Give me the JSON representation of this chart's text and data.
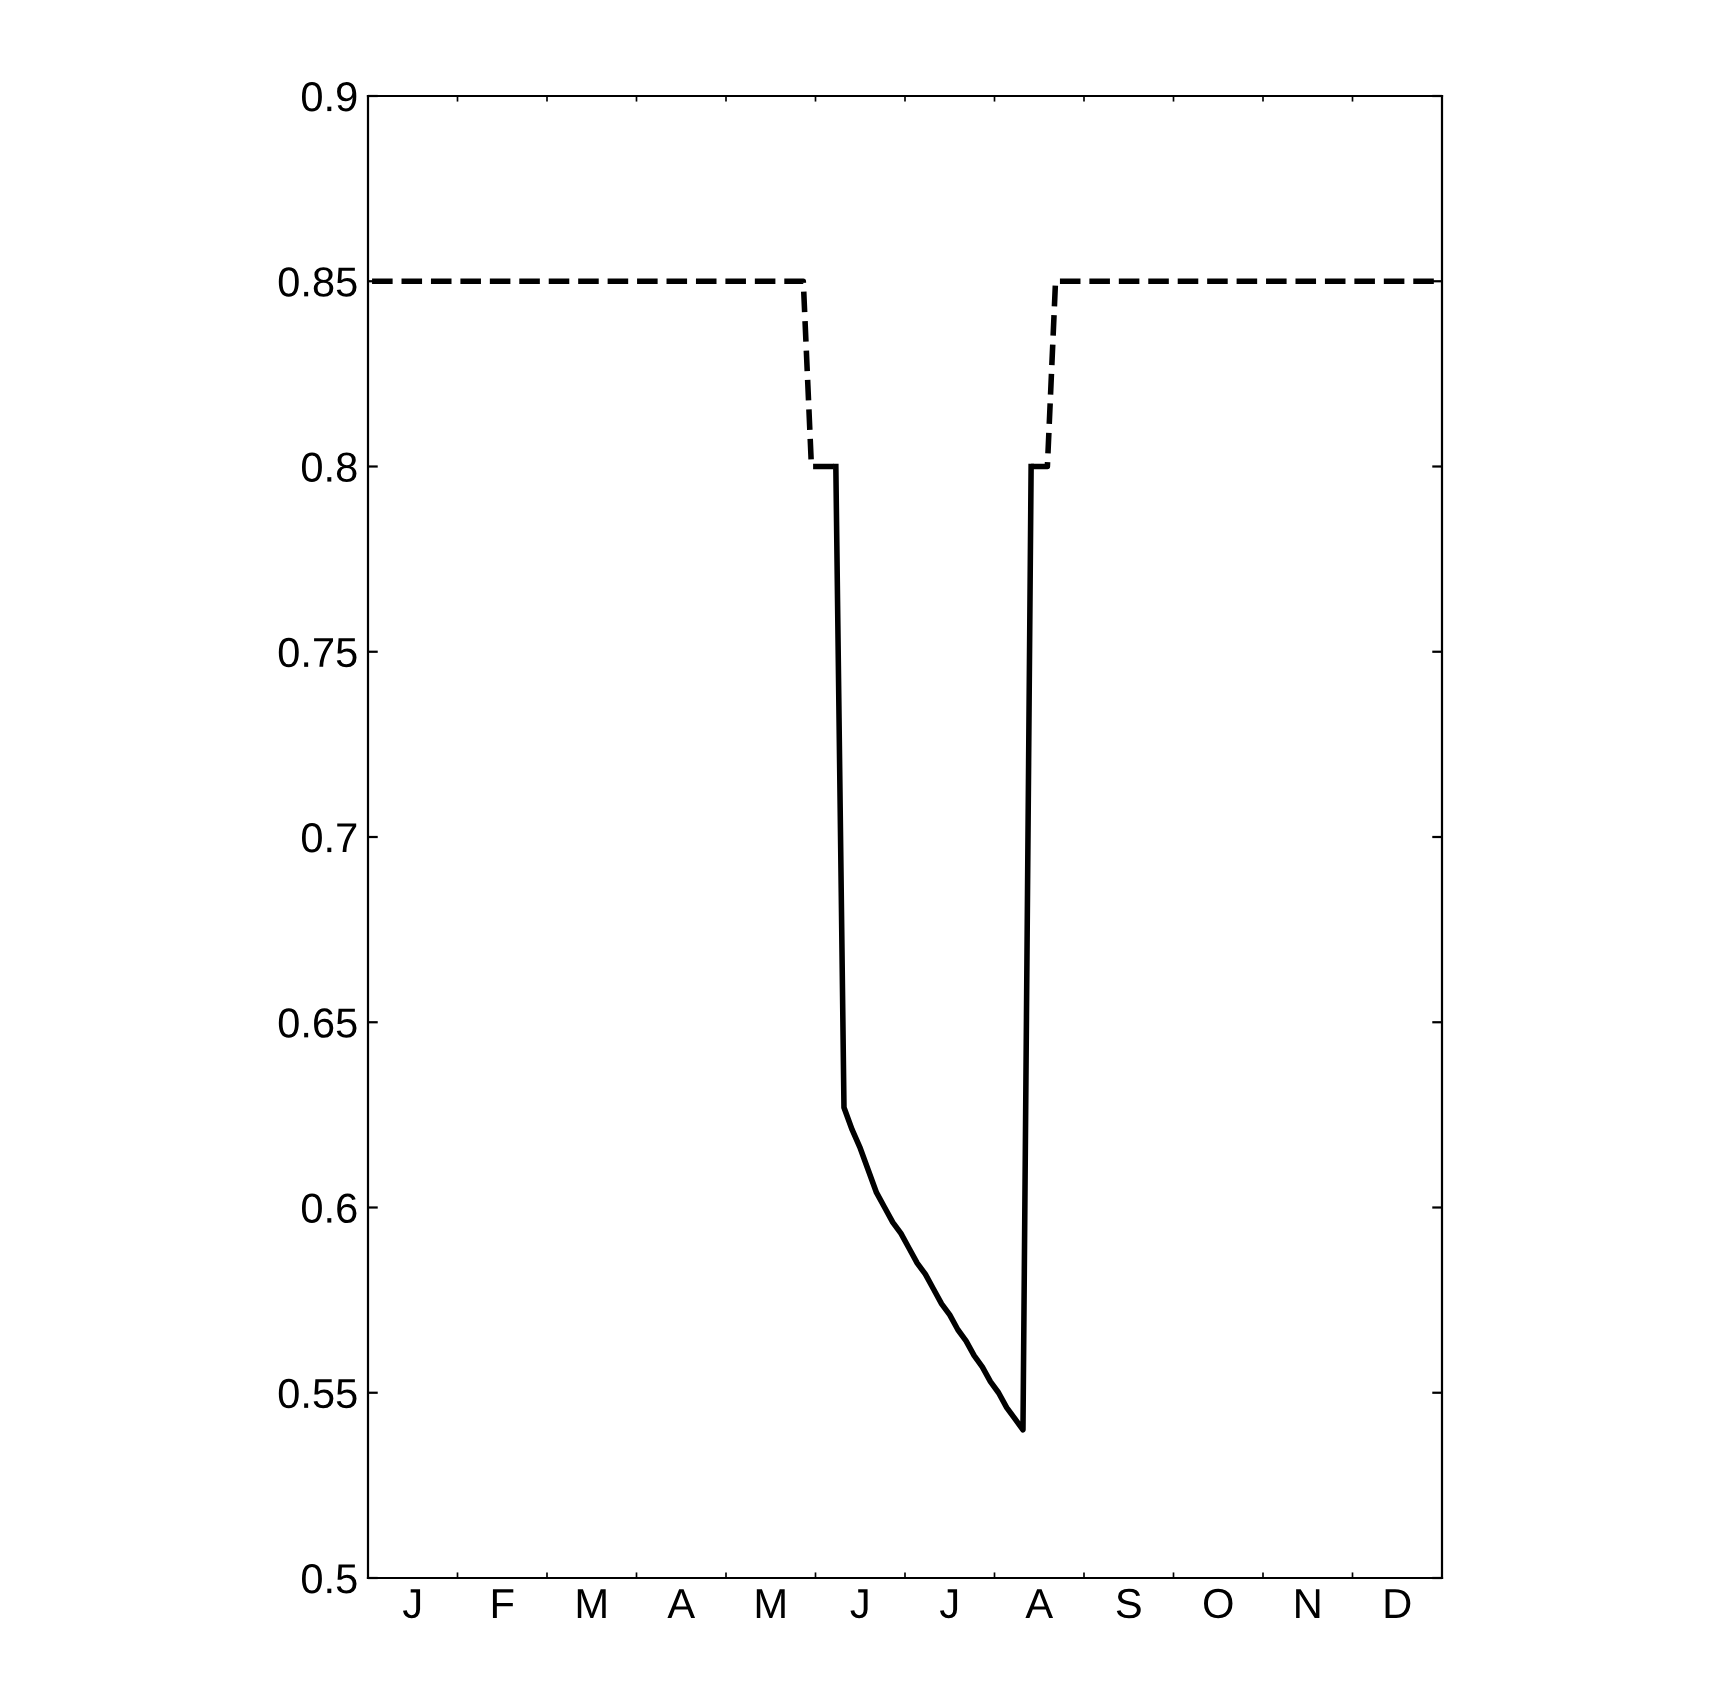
{
  "chart_data": {
    "type": "line",
    "categories": [
      null,
      null,
      null,
      null,
      null,
      "J",
      null,
      null,
      null,
      null,
      null,
      null,
      null,
      null,
      null,
      null,
      "F",
      null,
      null,
      null,
      null,
      null,
      null,
      null,
      null,
      null,
      null,
      "M",
      null,
      null,
      null,
      null,
      null,
      null,
      null,
      null,
      null,
      null,
      "A",
      null,
      null,
      null,
      null,
      null,
      null,
      null,
      null,
      null,
      null,
      "M",
      null,
      null,
      null,
      null,
      null,
      null,
      null,
      null,
      null,
      null,
      "J",
      null,
      null,
      null,
      null,
      null,
      null,
      null,
      null,
      null,
      null,
      "J",
      null,
      null,
      null,
      null,
      null,
      null,
      null,
      null,
      null,
      null,
      "A",
      null,
      null,
      null,
      null,
      null,
      null,
      null,
      null,
      null,
      null,
      "S",
      null,
      null,
      null,
      null,
      null,
      null,
      null,
      null,
      null,
      null,
      "O",
      null,
      null,
      null,
      null,
      null,
      null,
      null,
      null,
      null,
      null,
      "N",
      null,
      null,
      null,
      null,
      null,
      null,
      null,
      null,
      null,
      null,
      "D",
      null,
      null,
      null,
      null,
      null
    ],
    "series": [
      {
        "color": "#000000",
        "line_style": "dashed",
        "values": [
          0.85,
          0.85,
          0.85,
          0.85,
          0.85,
          0.85,
          0.85,
          0.85,
          0.85,
          0.85,
          0.85,
          0.85,
          0.85,
          0.85,
          0.85,
          0.85,
          0.85,
          0.85,
          0.85,
          0.85,
          0.85,
          0.85,
          0.85,
          0.85,
          0.85,
          0.85,
          0.85,
          0.85,
          0.85,
          0.85,
          0.85,
          0.85,
          0.85,
          0.85,
          0.85,
          0.85,
          0.85,
          0.85,
          0.85,
          0.85,
          0.85,
          0.85,
          0.85,
          0.85,
          0.85,
          0.85,
          0.85,
          0.85,
          0.85,
          0.85,
          0.85,
          0.85,
          0.85,
          0.85,
          0.8,
          0.8,
          0.8,
          0.8,
          null,
          null,
          null,
          null,
          null,
          null,
          null,
          null,
          null,
          null,
          null,
          null,
          null,
          null,
          null,
          null,
          null,
          null,
          null,
          null,
          null,
          null,
          null,
          0.8,
          0.8,
          0.8,
          0.85,
          0.85,
          0.85,
          0.85,
          0.85,
          0.85,
          0.85,
          0.85,
          0.85,
          0.85,
          0.85,
          0.85,
          0.85,
          0.85,
          0.85,
          0.85,
          0.85,
          0.85,
          0.85,
          0.85,
          0.85,
          0.85,
          0.85,
          0.85,
          0.85,
          0.85,
          0.85,
          0.85,
          0.85,
          0.85,
          0.85,
          0.85,
          0.85,
          0.85,
          0.85,
          0.85,
          0.85,
          0.85,
          0.85,
          0.85,
          0.85,
          0.85,
          0.85,
          0.85,
          0.85,
          0.85,
          0.85,
          0.85
        ]
      },
      {
        "color": "#000000",
        "line_style": "solid",
        "values": [
          null,
          null,
          null,
          null,
          null,
          null,
          null,
          null,
          null,
          null,
          null,
          null,
          null,
          null,
          null,
          null,
          null,
          null,
          null,
          null,
          null,
          null,
          null,
          null,
          null,
          null,
          null,
          null,
          null,
          null,
          null,
          null,
          null,
          null,
          null,
          null,
          null,
          null,
          null,
          null,
          null,
          null,
          null,
          null,
          null,
          null,
          null,
          null,
          null,
          null,
          null,
          null,
          null,
          null,
          null,
          null,
          null,
          0.8,
          0.627,
          0.621,
          0.616,
          0.61,
          0.604,
          0.6,
          0.596,
          0.593,
          0.589,
          0.585,
          0.582,
          0.578,
          0.574,
          0.571,
          0.567,
          0.564,
          0.56,
          0.557,
          0.553,
          0.55,
          0.546,
          0.543,
          0.54,
          0.8,
          null,
          null,
          null,
          null,
          null,
          null,
          null,
          null,
          null,
          null,
          null,
          null,
          null,
          null,
          null,
          null,
          null,
          null,
          null,
          null,
          null,
          null,
          null,
          null,
          null,
          null,
          null,
          null,
          null,
          null,
          null,
          null,
          null,
          null,
          null,
          null,
          null,
          null,
          null,
          null,
          null,
          null,
          null,
          null,
          null,
          null,
          null,
          null,
          null,
          null
        ]
      }
    ],
    "ylim": [
      0.5,
      0.9
    ],
    "yticks": [
      0.5,
      0.55,
      0.6,
      0.65,
      0.7,
      0.75,
      0.8,
      0.85,
      0.9
    ],
    "grid": false,
    "legend": false
  }
}
